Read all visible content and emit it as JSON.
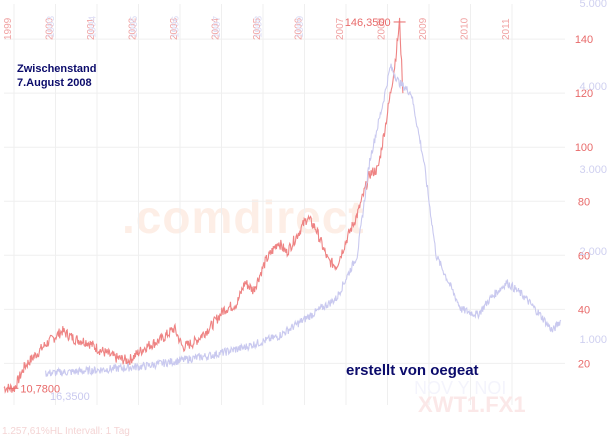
{
  "annotations": {
    "interim_title": "Zwischenstand",
    "interim_date": "7.August 2008",
    "author": "erstellt von oegeat",
    "watermark": ".comdirect"
  },
  "chart_data": {
    "type": "line",
    "title": "",
    "xlabel": "",
    "ylabel": "",
    "grid": true,
    "year_labels_primary": [
      "1999",
      "2000",
      "2001",
      "2002",
      "2003",
      "2004",
      "2005",
      "2006",
      "2007",
      "2008",
      "2009",
      "2010",
      "2011"
    ],
    "year_labels_secondary": [
      "1993",
      "1994",
      "1995",
      "1996",
      "1997",
      "1998",
      "1999"
    ],
    "right_axis_primary": {
      "ticks": [
        20,
        40,
        60,
        80,
        100,
        120,
        140
      ],
      "range": [
        12,
        153
      ]
    },
    "right_axis_secondary": {
      "tick_labels": [
        "1.000",
        "2.000",
        "3.000",
        "4.000",
        "5.000"
      ]
    },
    "series": [
      {
        "name": "",
        "color": "#ee8383",
        "x": [
          1999.0,
          1999.25,
          1999.5,
          2000.0,
          2000.4,
          2000.7,
          2001.0,
          2001.3,
          2001.7,
          2002.0,
          2002.4,
          2002.8,
          2003.1,
          2003.3,
          2003.6,
          2004.0,
          2004.3,
          2004.6,
          2004.8,
          2005.0,
          2005.3,
          2005.6,
          2005.8,
          2006.0,
          2006.3,
          2006.5,
          2006.8,
          2007.0,
          2007.3,
          2007.5,
          2007.8,
          2008.0,
          2008.2,
          2008.4,
          2008.52,
          2008.6
        ],
        "values": [
          11,
          10.78,
          19,
          27,
          32,
          29,
          28,
          25,
          22,
          21,
          26,
          29,
          33,
          26,
          28,
          34,
          40,
          42,
          50,
          47,
          58,
          65,
          61,
          66,
          74,
          70,
          58,
          56,
          68,
          75,
          90,
          92,
          110,
          130,
          146.35,
          120
        ]
      },
      {
        "name": "",
        "color": "#c9c9ef",
        "x": [
          2000.0,
          2000.8,
          2001.6,
          2002.4,
          2003.2,
          2004.0,
          2004.8,
          2005.6,
          2006.4,
          2007.0,
          2007.5,
          2007.8,
          2008.1,
          2008.3,
          2008.5,
          2008.8,
          2009.1,
          2009.4,
          2009.7,
          2010.0,
          2010.4,
          2010.7,
          2011.1,
          2011.5,
          2011.9,
          2012.2,
          2012.4
        ],
        "values": [
          16.35,
          17,
          18,
          19,
          21,
          23,
          26,
          30,
          38,
          44,
          60,
          95,
          115,
          130,
          124,
          120,
          95,
          60,
          50,
          40,
          38,
          44,
          50,
          45,
          38,
          32,
          36
        ]
      }
    ],
    "labels": {
      "peak": "146,3500",
      "low": "10,7800",
      "secondary_start": "16,3500",
      "series_legend": "NOV Y NOI",
      "symbol": "XWT1.FX1",
      "footer": "1.257,61%HL  Intervall: 1 Tag"
    }
  }
}
